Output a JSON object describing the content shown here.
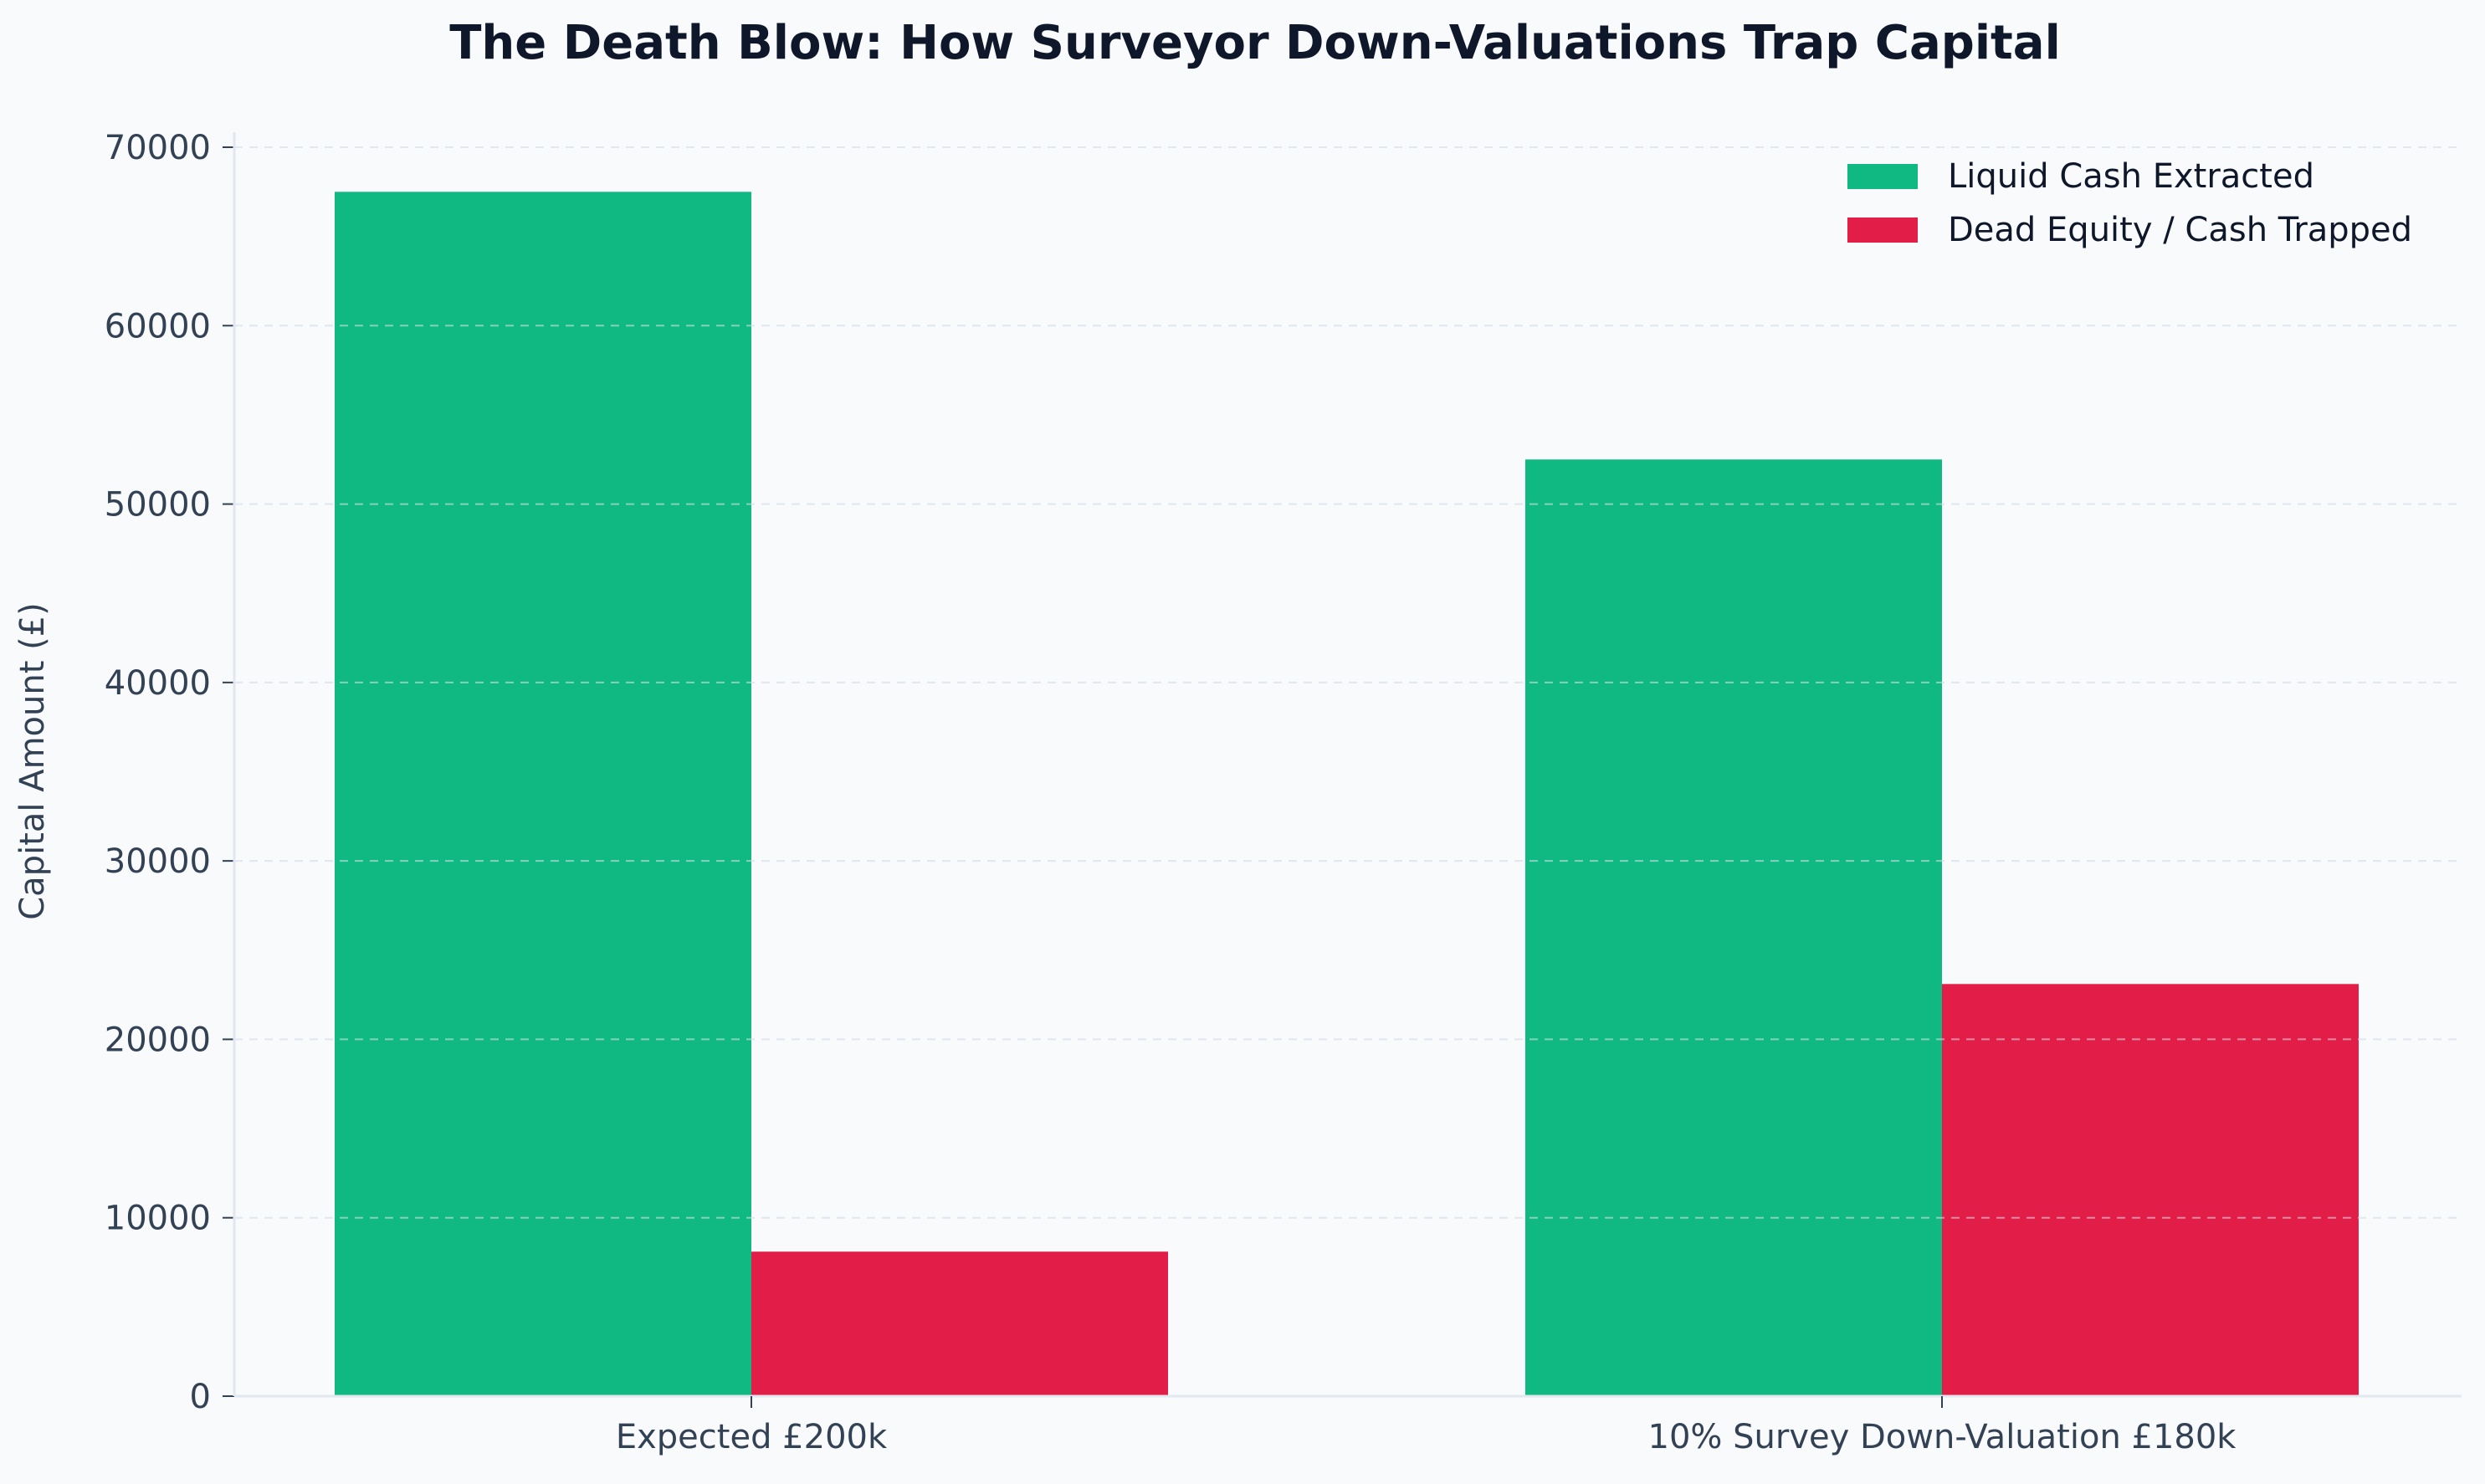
{
  "chart_data": {
    "type": "bar",
    "title": "The Death Blow: How Surveyor Down-Valuations Trap Capital",
    "xlabel": "",
    "ylabel": "Capital Amount (£)",
    "categories": [
      "Expected £200k",
      "10% Survey Down-Valuation £180k"
    ],
    "series": [
      {
        "name": "Liquid Cash Extracted",
        "color": "#10b981",
        "values": [
          67500,
          52500
        ]
      },
      {
        "name": "Dead Equity / Cash Trapped",
        "color": "#e11d48",
        "values": [
          8100,
          23100
        ]
      }
    ],
    "ylim": [
      0,
      70000
    ],
    "yticks": [
      0,
      10000,
      20000,
      30000,
      40000,
      50000,
      60000,
      70000
    ],
    "grid": true,
    "legend_position": "top-right",
    "colors": {
      "background": "#f8fafc",
      "text": "#334155",
      "title": "#0f172a",
      "axis": "#e2e8f0",
      "grid": "#e2e8f0"
    }
  }
}
